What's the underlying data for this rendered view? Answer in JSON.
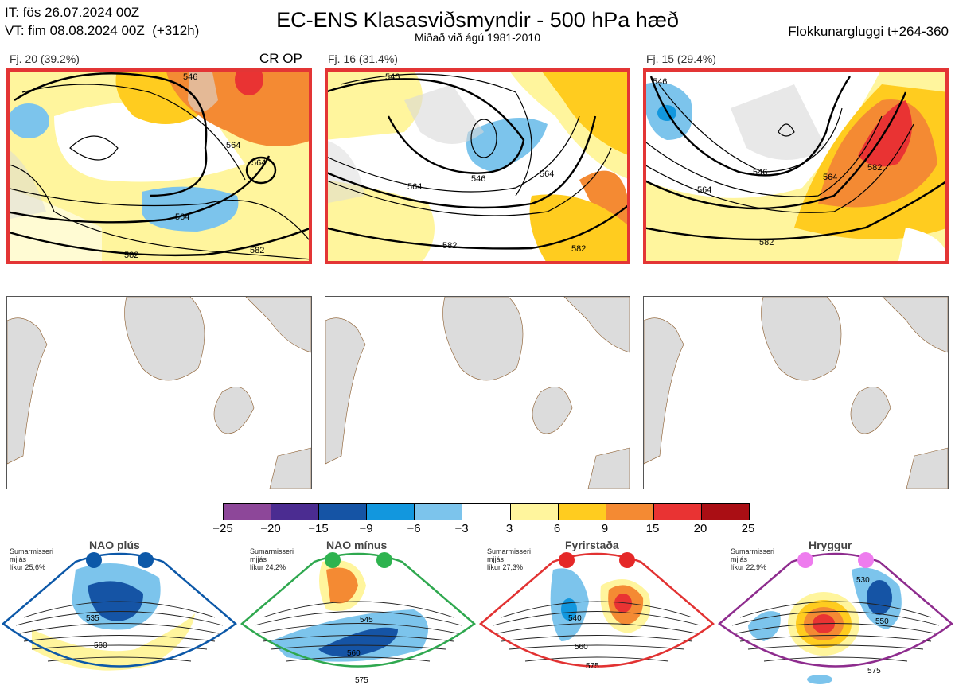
{
  "header": {
    "it_line": "IT: fös 26.07.2024 00Z",
    "vt_line": "VT: fim 08.08.2024 00Z  (+312h)",
    "title": "EC-ENS Klasasviðsmyndir - 500 hPa hæð",
    "subtitle": "Miðað við ágú 1981-2010",
    "window": "Flokkunargluggi t+264-360"
  },
  "panels": [
    {
      "label": "Fj. 20 (39.2%)",
      "tag": "CR OP",
      "contours": [
        "546",
        "564",
        "564",
        "564",
        "582",
        "582"
      ]
    },
    {
      "label": "Fj. 16 (31.4%)",
      "tag": "",
      "contours": [
        "546",
        "546",
        "564",
        "564",
        "582",
        "582"
      ]
    },
    {
      "label": "Fj. 15 (29.4%)",
      "tag": "",
      "contours": [
        "546",
        "546",
        "564",
        "564",
        "582",
        "582"
      ]
    }
  ],
  "colorbar": {
    "ticks": [
      "−25",
      "−20",
      "−15",
      "−9",
      "−6",
      "−3",
      "3",
      "6",
      "9",
      "15",
      "20",
      "25"
    ],
    "colors": [
      "#8d4799",
      "#4b2c91",
      "#1554a5",
      "#1297de",
      "#7cc4ec",
      "#ffffff",
      "#fff59d",
      "#ffcc1f",
      "#f48a33",
      "#e93333",
      "#aa0e14"
    ]
  },
  "regimes": [
    {
      "title": "NAO plús",
      "season": "Sumarmisseri",
      "flow": "mjjás",
      "prob": "líkur 25,6%",
      "color": "#0c58a8",
      "dots": "#0c58a8",
      "contours": [
        "535",
        "560"
      ]
    },
    {
      "title": "NAO mínus",
      "season": "Sumarmisseri",
      "flow": "mjjás",
      "prob": "líkur 24,2%",
      "color": "#2fa84f",
      "dots": "#2eb34f",
      "contours": [
        "545",
        "560",
        "575"
      ]
    },
    {
      "title": "Fyrirstaða",
      "season": "Sumarmisseri",
      "flow": "mjjás",
      "prob": "líkur 27,3%",
      "color": "#e23232",
      "dots": "#e52828",
      "contours": [
        "540",
        "560",
        "575"
      ]
    },
    {
      "title": "Hryggur",
      "season": "Sumarmisseri",
      "flow": "mjjás",
      "prob": "líkur 22,9%",
      "color": "#8e2c8e",
      "dots": "#ee7cee",
      "contours": [
        "530",
        "550",
        "575"
      ]
    }
  ]
}
